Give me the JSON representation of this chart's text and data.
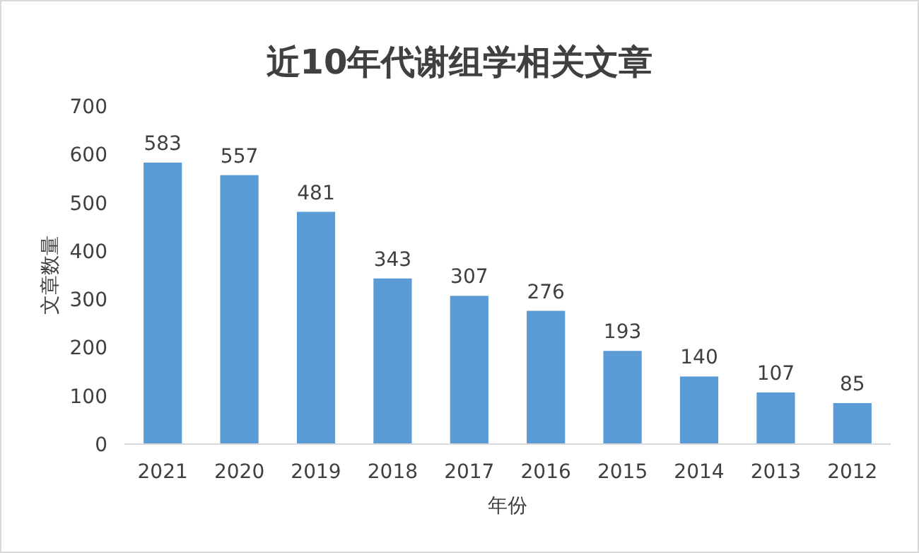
{
  "chart_data": {
    "type": "bar",
    "title": "近10年代谢组学相关文章",
    "xlabel": "年份",
    "ylabel": "文章数量",
    "categories": [
      "2021",
      "2020",
      "2019",
      "2018",
      "2017",
      "2016",
      "2015",
      "2014",
      "2013",
      "2012"
    ],
    "values": [
      583,
      557,
      481,
      343,
      307,
      276,
      193,
      140,
      107,
      85
    ],
    "color": "#5b9bd5",
    "ylim": [
      0,
      700
    ],
    "yticks": [
      0,
      100,
      200,
      300,
      400,
      500,
      600,
      700
    ],
    "grid": false,
    "data_labels": true
  }
}
